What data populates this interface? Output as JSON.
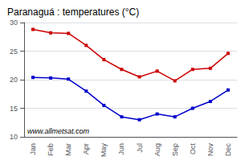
{
  "chart_data": {
    "type": "line",
    "title": "Paranaguá : temperatures (°C)",
    "categories": [
      "Jan",
      "Feb",
      "Mar",
      "Apr",
      "May",
      "Jun",
      "Jul",
      "Aug",
      "Sep",
      "Oct",
      "Nov",
      "Dec"
    ],
    "series": [
      {
        "color": "#cc0000",
        "values": [
          28.8,
          28.2,
          28.1,
          26.0,
          23.5,
          21.8,
          20.5,
          21.5,
          19.8,
          21.8,
          22.0,
          24.6
        ]
      },
      {
        "color": "#0000cc",
        "values": [
          20.4,
          20.3,
          20.1,
          18.0,
          15.5,
          13.5,
          13.0,
          14.0,
          13.5,
          15.0,
          16.2,
          18.2
        ]
      }
    ],
    "annotation": "www.allmetsat.com",
    "marker": "square",
    "ylim": [
      10,
      30
    ],
    "yticks": [
      10,
      15,
      20,
      25,
      30
    ],
    "grid": true
  }
}
